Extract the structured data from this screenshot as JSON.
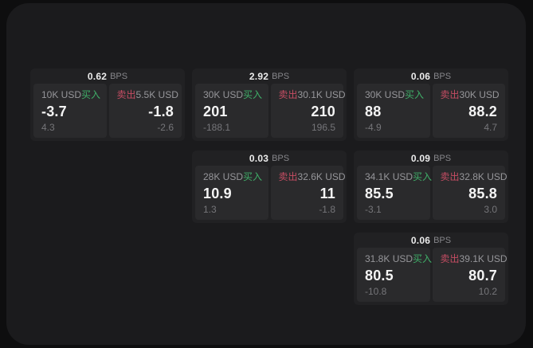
{
  "labels": {
    "bps": "BPS",
    "buy": "买入",
    "sell": "卖出"
  },
  "colors": {
    "background": "#0e0e0f",
    "panel": "#1b1b1d",
    "card": "#212123",
    "pane": "#2a2a2c",
    "buy_green": "#3fae68",
    "sell_red": "#c64d63"
  },
  "cards": [
    {
      "bps": "0.62",
      "buy": {
        "amount": "10K USD",
        "price": "-3.7",
        "change": "4.3"
      },
      "sell": {
        "amount": "5.5K USD",
        "price": "-1.8",
        "change": "-2.6"
      }
    },
    {
      "bps": "2.92",
      "buy": {
        "amount": "30K USD",
        "price": "201",
        "change": "-188.1"
      },
      "sell": {
        "amount": "30.1K USD",
        "price": "210",
        "change": "196.5"
      }
    },
    {
      "bps": "0.06",
      "buy": {
        "amount": "30K USD",
        "price": "88",
        "change": "-4.9"
      },
      "sell": {
        "amount": "30K USD",
        "price": "88.2",
        "change": "4.7"
      }
    },
    {
      "bps": "0.03",
      "buy": {
        "amount": "28K USD",
        "price": "10.9",
        "change": "1.3"
      },
      "sell": {
        "amount": "32.6K USD",
        "price": "11",
        "change": "-1.8"
      }
    },
    {
      "bps": "0.09",
      "buy": {
        "amount": "34.1K USD",
        "price": "85.5",
        "change": "-3.1"
      },
      "sell": {
        "amount": "32.8K USD",
        "price": "85.8",
        "change": "3.0"
      }
    },
    {
      "bps": "0.06",
      "buy": {
        "amount": "31.8K USD",
        "price": "80.5",
        "change": "-10.8"
      },
      "sell": {
        "amount": "39.1K USD",
        "price": "80.7",
        "change": "10.2"
      }
    }
  ]
}
